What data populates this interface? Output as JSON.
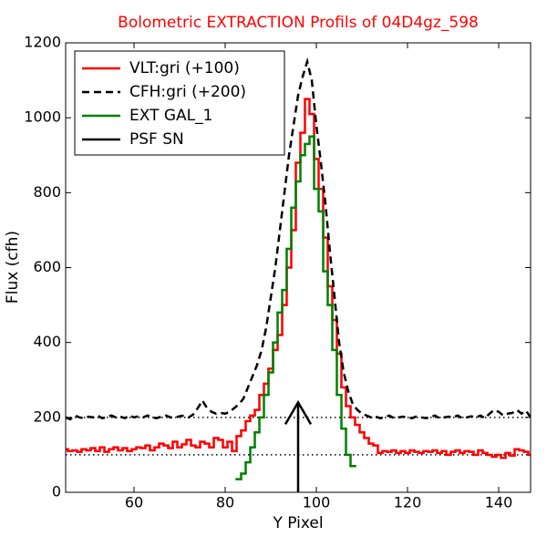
{
  "chart_data": {
    "type": "line",
    "title": "Bolometric EXTRACTION Profils of 04D4gz_598",
    "xlabel": "Y Pixel",
    "ylabel": "Flux (cfh)",
    "xlim": [
      45,
      147
    ],
    "ylim": [
      0,
      1200
    ],
    "xticks": [
      60,
      80,
      100,
      120,
      140
    ],
    "yticks": [
      0,
      200,
      400,
      600,
      800,
      1000,
      1200
    ],
    "legend": "upper left",
    "hlines": [
      100,
      200
    ],
    "series": [
      {
        "name": "VLT:gri (+100)",
        "color": "#ff0000",
        "style": "step",
        "x": [
          45,
          46,
          47,
          48,
          49,
          50,
          51,
          52,
          53,
          54,
          55,
          56,
          57,
          58,
          59,
          60,
          61,
          62,
          63,
          64,
          65,
          66,
          67,
          68,
          69,
          70,
          71,
          72,
          73,
          74,
          75,
          76,
          77,
          78,
          79,
          80,
          81,
          82,
          83,
          84,
          85,
          86,
          87,
          88,
          89,
          90,
          91,
          92,
          93,
          94,
          95,
          96,
          97,
          98,
          99,
          100,
          101,
          102,
          103,
          104,
          105,
          106,
          107,
          108,
          109,
          110,
          111,
          112,
          113,
          114,
          115,
          116,
          117,
          118,
          119,
          120,
          121,
          122,
          123,
          124,
          125,
          126,
          127,
          128,
          129,
          130,
          131,
          132,
          133,
          134,
          135,
          136,
          137,
          138,
          139,
          140,
          141,
          142,
          143,
          144,
          145,
          146,
          147
        ],
        "values": [
          115,
          110,
          112,
          108,
          115,
          112,
          118,
          110,
          120,
          108,
          115,
          120,
          112,
          118,
          110,
          115,
          120,
          118,
          125,
          112,
          120,
          130,
          125,
          118,
          135,
          120,
          128,
          140,
          125,
          120,
          135,
          130,
          120,
          145,
          140,
          120,
          135,
          110,
          150,
          165,
          190,
          205,
          220,
          260,
          290,
          330,
          380,
          420,
          500,
          600,
          700,
          880,
          960,
          1050,
          1010,
          890,
          810,
          680,
          550,
          460,
          370,
          280,
          230,
          200,
          180,
          160,
          145,
          130,
          125,
          105,
          110,
          108,
          112,
          105,
          110,
          105,
          112,
          108,
          105,
          110,
          108,
          112,
          105,
          110,
          100,
          108,
          112,
          105,
          110,
          108,
          100,
          112,
          105,
          100,
          95,
          100,
          92,
          105,
          98,
          115,
          112,
          108,
          100
        ]
      },
      {
        "name": "CFH:gri (+200)",
        "color": "#000000",
        "style": "dashed",
        "x": [
          45,
          46,
          47,
          48,
          49,
          50,
          51,
          52,
          53,
          54,
          55,
          56,
          57,
          58,
          59,
          60,
          61,
          62,
          63,
          64,
          65,
          66,
          67,
          68,
          69,
          70,
          71,
          72,
          73,
          74,
          75,
          76,
          77,
          78,
          79,
          80,
          81,
          82,
          83,
          84,
          85,
          86,
          87,
          88,
          89,
          90,
          91,
          92,
          93,
          94,
          95,
          96,
          97,
          98,
          99,
          100,
          101,
          102,
          103,
          104,
          105,
          106,
          107,
          108,
          109,
          110,
          111,
          112,
          113,
          114,
          115,
          116,
          117,
          118,
          119,
          120,
          121,
          122,
          123,
          124,
          125,
          126,
          127,
          128,
          129,
          130,
          131,
          132,
          133,
          134,
          135,
          136,
          137,
          138,
          139,
          140,
          141,
          142,
          143,
          144,
          145,
          146,
          147
        ],
        "values": [
          200,
          195,
          205,
          200,
          198,
          202,
          200,
          205,
          198,
          200,
          205,
          200,
          202,
          198,
          205,
          200,
          203,
          200,
          205,
          200,
          198,
          202,
          205,
          200,
          200,
          203,
          205,
          200,
          208,
          225,
          245,
          225,
          215,
          210,
          212,
          210,
          215,
          225,
          235,
          250,
          280,
          310,
          340,
          380,
          440,
          520,
          600,
          700,
          800,
          900,
          980,
          1060,
          1110,
          1150,
          1100,
          980,
          880,
          770,
          640,
          520,
          400,
          320,
          270,
          235,
          220,
          210,
          205,
          200,
          202,
          198,
          200,
          205,
          198,
          200,
          202,
          200,
          198,
          203,
          200,
          198,
          200,
          205,
          198,
          200,
          202,
          200,
          205,
          198,
          200,
          203,
          200,
          205,
          198,
          210,
          220,
          215,
          205,
          210,
          212,
          220,
          210,
          218,
          200
        ]
      },
      {
        "name": "EXT GAL_1",
        "color": "#008000",
        "style": "step",
        "x": [
          83,
          84,
          85,
          86,
          87,
          88,
          89,
          90,
          91,
          92,
          93,
          94,
          95,
          96,
          97,
          98,
          99,
          100,
          101,
          102,
          103,
          104,
          105,
          106,
          107,
          108
        ],
        "values": [
          35,
          50,
          80,
          120,
          160,
          200,
          260,
          320,
          400,
          480,
          540,
          650,
          760,
          830,
          900,
          930,
          950,
          810,
          750,
          590,
          500,
          380,
          260,
          170,
          100,
          70
        ]
      },
      {
        "name": "PSF SN",
        "color": "#000000",
        "style": "arrow",
        "x": [
          96
        ],
        "values": [
          240
        ]
      }
    ]
  }
}
